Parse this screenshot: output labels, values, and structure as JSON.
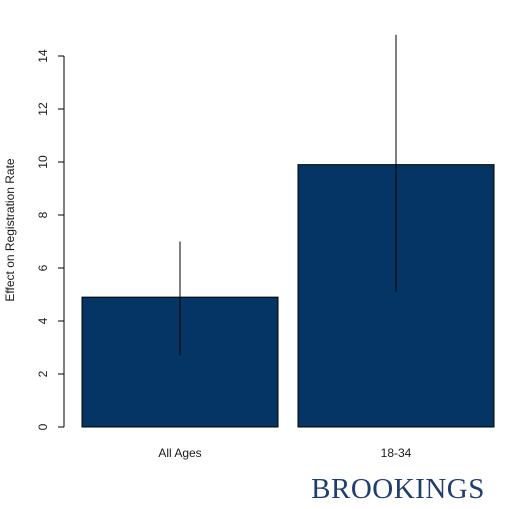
{
  "chart_data": {
    "type": "bar",
    "categories": [
      "All Ages",
      "18-34"
    ],
    "values": [
      4.9,
      9.9
    ],
    "error_bars": [
      {
        "low": 2.7,
        "high": 7.0
      },
      {
        "low": 5.1,
        "high": 14.8
      }
    ],
    "title": "",
    "xlabel": "",
    "ylabel": "Effect on Registration Rate",
    "ylim": [
      0,
      14.8
    ],
    "yticks": [
      0,
      2,
      4,
      6,
      8,
      10,
      12,
      14
    ],
    "grid": false,
    "bar_color": "#043565",
    "error_color": "#000000"
  },
  "logo": {
    "text": "BROOKINGS",
    "color": "#1f3e6d"
  }
}
